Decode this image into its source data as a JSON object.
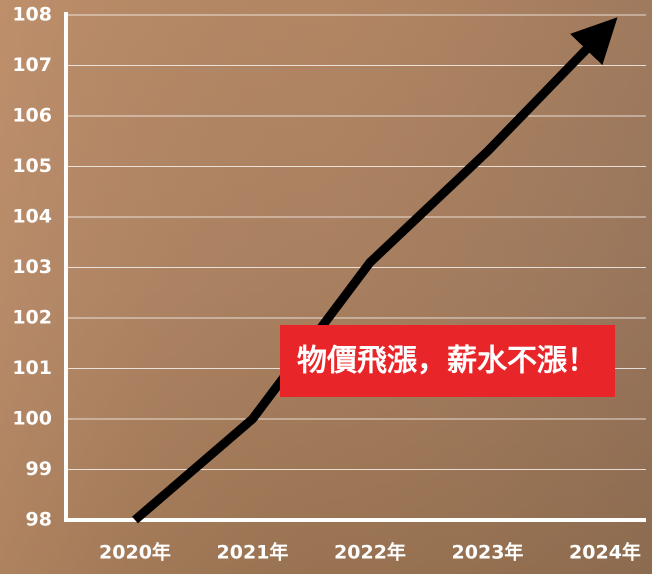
{
  "chart_data": {
    "type": "line",
    "categories": [
      "2020年",
      "2021年",
      "2022年",
      "2023年",
      "2024年"
    ],
    "series": [
      {
        "color": "#000000",
        "values": [
          98,
          100,
          103.1,
          105.3,
          107.7
        ]
      }
    ],
    "ylim": [
      98,
      108
    ],
    "yticks": [
      98,
      99,
      100,
      101,
      102,
      103,
      104,
      105,
      106,
      107,
      108
    ],
    "grid": true,
    "annotation": "物價飛漲，薪水不漲！"
  }
}
